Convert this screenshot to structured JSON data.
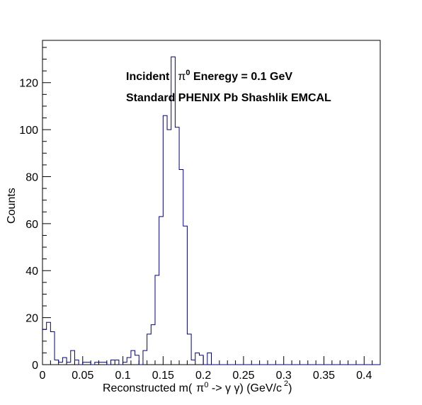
{
  "chart_data": {
    "type": "histogram",
    "bin_width": 0.005,
    "x_range": [
      0,
      0.42
    ],
    "y_range": [
      0,
      138
    ],
    "x_ticks": [
      0,
      0.05,
      0.1,
      0.15,
      0.2,
      0.25,
      0.3,
      0.35,
      0.4
    ],
    "x_tick_labels": [
      "0",
      "0.05",
      "0.1",
      "0.15",
      "0.2",
      "0.25",
      "0.3",
      "0.35",
      "0.4"
    ],
    "y_ticks": [
      0,
      20,
      40,
      60,
      80,
      100,
      120
    ],
    "y_tick_labels": [
      "0",
      "20",
      "40",
      "60",
      "80",
      "100",
      "120"
    ],
    "xlabel": {
      "prefix": "Reconstructed m(",
      "pi": "π",
      "pi_sup": "0",
      "middle": " -> γ γ) (GeV/c",
      "c_sup": "2",
      "suffix": ")"
    },
    "ylabel": "Counts",
    "annotations": {
      "line1_prefix": "Incident",
      "line1_pi": "π",
      "line1_sup": "0",
      "line1_suffix": " Eneregy = 0.1 GeV",
      "line2": "Standard PHENIX Pb Shashlik EMCAL"
    },
    "counts": [
      15,
      18,
      14,
      2,
      1,
      3,
      1,
      6,
      2,
      0,
      1,
      1,
      0,
      1,
      1,
      1,
      0,
      2,
      2,
      0,
      1,
      3,
      6,
      4,
      0,
      6,
      13,
      17,
      38,
      63,
      106,
      100,
      131,
      101,
      83,
      59,
      13,
      2,
      5,
      4,
      0,
      5,
      0,
      0,
      0,
      0,
      0,
      0,
      0,
      0,
      0,
      0,
      0,
      0,
      0,
      0,
      0,
      0,
      0,
      0,
      0,
      0,
      0,
      0,
      0,
      0,
      0,
      0,
      0,
      0,
      0,
      0,
      0,
      0,
      0,
      0,
      0,
      0,
      0,
      0,
      0,
      0,
      0,
      0
    ],
    "line_color": "#000080",
    "grid": false
  }
}
